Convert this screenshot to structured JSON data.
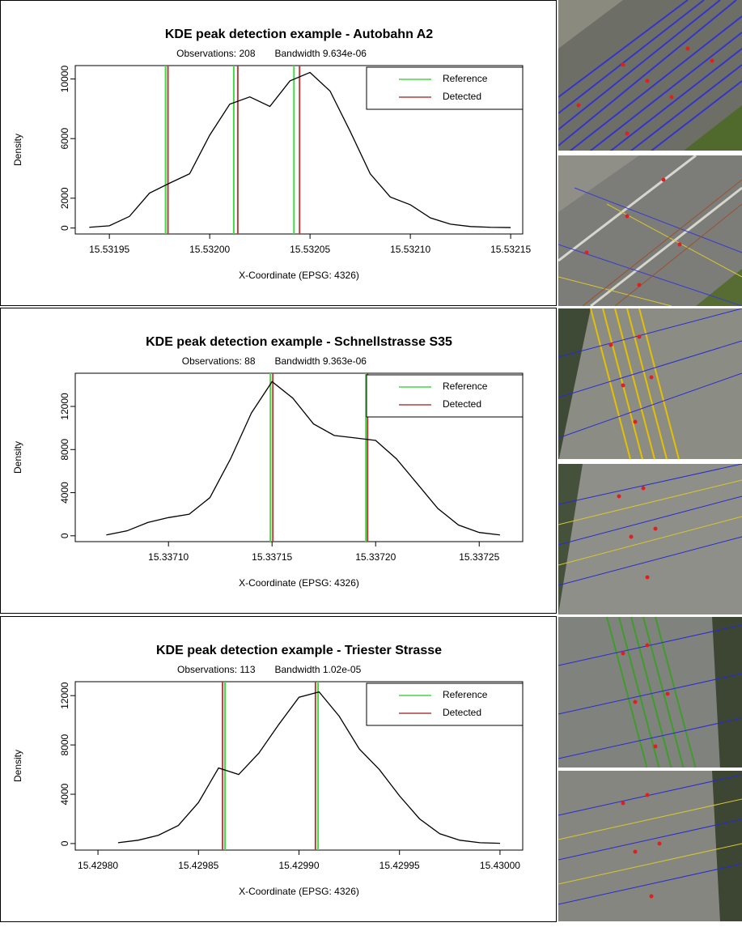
{
  "chart_data": [
    {
      "type": "line",
      "title": "KDE peak detection example - Autobahn A2",
      "subtitle": [
        "Observations: 208",
        "Bandwidth 9.634e-06"
      ],
      "xlabel": "X-Coordinate (EPSG: 4326)",
      "ylabel": "Density",
      "color": "#000000",
      "x": [
        15.53194,
        15.53195,
        15.53196,
        15.53197,
        15.53198,
        15.53199,
        15.532,
        15.53201,
        15.53202,
        15.53203,
        15.53204,
        15.53205,
        15.53206,
        15.53207,
        15.53208,
        15.53209,
        15.5321,
        15.53211,
        15.53212,
        15.53213,
        15.53214,
        15.53215
      ],
      "values": [
        50,
        150,
        780,
        2340,
        3010,
        3640,
        6230,
        8310,
        8800,
        8160,
        9870,
        10440,
        9190,
        6490,
        3640,
        2080,
        1560,
        680,
        260,
        100,
        50,
        30
      ],
      "vlines": [
        {
          "name": "Reference",
          "color": "#44d944",
          "x": [
            15.531978,
            15.532012,
            15.532042
          ]
        },
        {
          "name": "Detected",
          "color": "#b04040",
          "x": [
            15.5319792,
            15.532014,
            15.5320448
          ]
        }
      ],
      "xlim": [
        15.531933,
        15.532156
      ],
      "ylim": [
        -400,
        10900
      ],
      "xticks": [
        15.53195,
        {
          "value": 15.532,
          "label": "15.53200"
        },
        15.53205,
        {
          "value": 15.5321,
          "label": "15.53210"
        },
        15.53215
      ],
      "yticks": [
        0,
        2000,
        6000,
        10000
      ],
      "legend": "top-right"
    },
    {
      "type": "line",
      "title": "KDE peak detection example - Schnellstrasse S35",
      "subtitle": [
        "Observations: 88",
        "Bandwidth 9.363e-06"
      ],
      "xlabel": "X-Coordinate (EPSG: 4326)",
      "ylabel": "Density",
      "color": "#000000",
      "x": [
        15.33707,
        15.33708,
        15.33709,
        15.3371,
        15.33711,
        15.33712,
        15.33713,
        15.33714,
        15.33715,
        15.33716,
        15.33717,
        15.33718,
        15.33719,
        15.3372,
        15.33721,
        15.33722,
        15.33723,
        15.33724,
        15.33725,
        15.33726
      ],
      "values": [
        80,
        460,
        1230,
        1690,
        2000,
        3540,
        7150,
        11380,
        14300,
        12770,
        10380,
        9310,
        9080,
        8850,
        7150,
        4850,
        2540,
        1000,
        310,
        80
      ],
      "vlines": [
        {
          "name": "Reference",
          "color": "#44d944",
          "x": [
            15.3371492,
            15.3371953
          ]
        },
        {
          "name": "Detected",
          "color": "#b04040",
          "x": [
            15.3371504,
            15.3371961
          ]
        }
      ],
      "xlim": [
        15.337055,
        15.337271
      ],
      "ylim": [
        -540,
        15080
      ],
      "xticks": [
        {
          "value": 15.3371,
          "label": "15.33710"
        },
        15.33715,
        {
          "value": 15.3372,
          "label": "15.33720"
        },
        15.33725
      ],
      "yticks": [
        0,
        4000,
        8000,
        12000
      ],
      "legend": "top-right"
    },
    {
      "type": "line",
      "title": "KDE peak detection example - Triester Strasse",
      "subtitle": [
        "Observations: 113",
        "Bandwidth 1.02e-05"
      ],
      "xlabel": "X-Coordinate (EPSG: 4326)",
      "ylabel": "Density",
      "color": "#000000",
      "x": [
        15.42981,
        15.42982,
        15.42983,
        15.42984,
        15.42985,
        15.42986,
        15.42987,
        15.42988,
        15.42989,
        15.4299,
        15.42991,
        15.42992,
        15.42993,
        15.42994,
        15.42995,
        15.42996,
        15.42997,
        15.42998,
        15.42999,
        15.43
      ],
      "values": [
        70,
        270,
        670,
        1470,
        3330,
        6130,
        5600,
        7330,
        9670,
        11870,
        12300,
        10330,
        7670,
        6000,
        3870,
        2000,
        800,
        270,
        70,
        20
      ],
      "vlines": [
        {
          "name": "Reference",
          "color": "#44d944",
          "x": [
            15.4298632,
            15.4299095
          ]
        },
        {
          "name": "Detected",
          "color": "#b04040",
          "x": [
            15.429862,
            15.4299082
          ]
        }
      ],
      "xlim": [
        15.4297887,
        15.4300113
      ],
      "ylim": [
        -530,
        13130
      ],
      "xticks": [
        {
          "value": 15.4298,
          "label": "15.42980"
        },
        15.42985,
        {
          "value": 15.4299,
          "label": "15.42990"
        },
        15.42995,
        {
          "value": 15.43,
          "label": "15.43000"
        }
      ],
      "yticks": [
        0,
        4000,
        8000,
        12000
      ],
      "legend": "top-right"
    }
  ]
}
